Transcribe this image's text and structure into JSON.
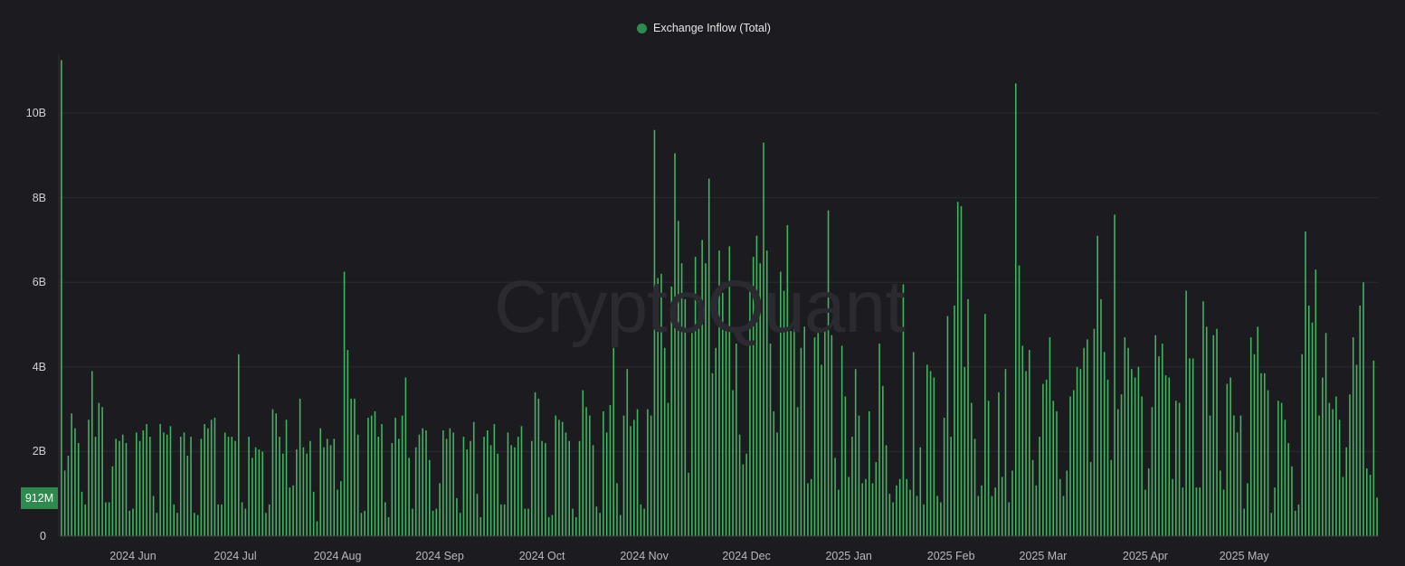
{
  "legend": {
    "label": "Exchange Inflow (Total)",
    "color": "#2e8b4e"
  },
  "watermark": "CryptoQuant",
  "last_value_label": "912M",
  "colors": {
    "bar": "#3fb55f",
    "badge": "#2e8b4e",
    "background": "#1c1c20",
    "grid": "#2a2a30"
  },
  "chart_data": {
    "type": "bar",
    "series": [
      {
        "name": "Exchange Inflow (Total)"
      }
    ],
    "y_ticks": [
      "0",
      "2B",
      "4B",
      "6B",
      "8B",
      "10B"
    ],
    "ylim": [
      0,
      11.5
    ],
    "y_unit": "B",
    "x_ticks": [
      {
        "label": "2024 Jun",
        "index": 21
      },
      {
        "label": "2024 Jul",
        "index": 51
      },
      {
        "label": "2024 Aug",
        "index": 81
      },
      {
        "label": "2024 Sep",
        "index": 111
      },
      {
        "label": "2024 Oct",
        "index": 141
      },
      {
        "label": "2024 Nov",
        "index": 171
      },
      {
        "label": "2024 Dec",
        "index": 201
      },
      {
        "label": "2025 Jan",
        "index": 231
      },
      {
        "label": "2025 Feb",
        "index": 261
      },
      {
        "label": "2025 Mar",
        "index": 288
      },
      {
        "label": "2025 Apr",
        "index": 318
      },
      {
        "label": "2025 May",
        "index": 347
      }
    ],
    "values": [
      11.25,
      1.55,
      1.9,
      2.9,
      2.55,
      2.2,
      1.05,
      0.75,
      2.75,
      3.9,
      2.35,
      3.15,
      3.05,
      0.8,
      0.8,
      1.65,
      2.3,
      2.25,
      2.4,
      2.2,
      0.6,
      0.65,
      2.45,
      2.25,
      2.5,
      2.65,
      2.35,
      0.95,
      0.55,
      2.65,
      2.45,
      2.4,
      2.6,
      0.75,
      0.55,
      2.35,
      2.45,
      1.9,
      2.35,
      0.55,
      0.5,
      2.3,
      2.65,
      2.55,
      2.75,
      2.8,
      0.75,
      0.75,
      2.45,
      2.35,
      2.35,
      2.25,
      4.3,
      0.8,
      0.65,
      2.35,
      1.85,
      2.1,
      2.05,
      2.0,
      0.55,
      0.75,
      3.0,
      2.9,
      2.35,
      1.95,
      2.75,
      1.15,
      1.2,
      2.05,
      3.25,
      2.1,
      1.95,
      2.25,
      1.05,
      0.35,
      2.55,
      2.1,
      2.3,
      2.15,
      2.3,
      1.1,
      1.3,
      6.25,
      4.4,
      3.25,
      3.25,
      2.4,
      0.55,
      0.6,
      2.8,
      2.85,
      2.95,
      2.35,
      2.65,
      0.8,
      0.45,
      2.2,
      2.8,
      2.3,
      2.85,
      3.75,
      1.85,
      0.65,
      2.1,
      2.4,
      2.55,
      2.5,
      1.8,
      0.6,
      0.65,
      1.25,
      2.5,
      2.3,
      2.55,
      2.45,
      0.9,
      0.55,
      2.35,
      2.05,
      2.25,
      2.7,
      1.0,
      0.45,
      2.35,
      2.5,
      2.15,
      2.65,
      1.95,
      0.75,
      0.75,
      2.45,
      2.15,
      2.1,
      2.35,
      2.6,
      0.65,
      0.65,
      2.25,
      3.4,
      3.25,
      2.25,
      2.2,
      0.45,
      0.5,
      2.85,
      2.75,
      2.7,
      2.45,
      2.25,
      0.65,
      0.45,
      2.25,
      3.45,
      3.05,
      2.85,
      2.15,
      0.7,
      0.55,
      2.95,
      2.45,
      3.1,
      4.45,
      1.25,
      0.5,
      2.85,
      3.95,
      2.6,
      2.75,
      3.0,
      0.75,
      0.65,
      3.0,
      2.85,
      9.6,
      6.1,
      6.2,
      4.45,
      3.15,
      5.9,
      9.05,
      7.45,
      6.45,
      5.6,
      1.5,
      4.8,
      6.6,
      5.15,
      7.0,
      6.45,
      8.45,
      3.85,
      4.45,
      6.75,
      5.75,
      5.0,
      6.85,
      3.45,
      4.55,
      2.4,
      1.7,
      1.95,
      5.9,
      6.6,
      7.1,
      6.45,
      9.3,
      6.75,
      4.55,
      2.95,
      2.45,
      6.25,
      5.8,
      7.35,
      4.85,
      4.9,
      3.05,
      4.45,
      4.95,
      1.25,
      1.35,
      4.7,
      4.8,
      4.05,
      4.85,
      7.7,
      4.75,
      1.85,
      1.1,
      4.5,
      3.3,
      1.4,
      2.35,
      3.95,
      2.85,
      1.25,
      1.35,
      2.95,
      1.25,
      1.75,
      4.55,
      3.55,
      2.15,
      1.0,
      0.8,
      1.2,
      1.35,
      5.95,
      1.35,
      1.1,
      4.35,
      0.95,
      2.1,
      0.75,
      4.05,
      3.9,
      3.75,
      0.95,
      0.8,
      2.8,
      5.2,
      2.35,
      5.45,
      7.9,
      7.8,
      4.0,
      5.6,
      3.15,
      2.3,
      0.95,
      1.2,
      5.25,
      3.2,
      0.95,
      1.15,
      3.4,
      1.4,
      3.95,
      0.8,
      1.55,
      10.7,
      6.4,
      4.5,
      3.9,
      4.4,
      1.8,
      1.2,
      2.35,
      3.6,
      3.7,
      4.7,
      3.2,
      2.95,
      1.35,
      0.95,
      1.55,
      3.3,
      3.45,
      4.0,
      3.95,
      4.45,
      4.65,
      1.75,
      4.9,
      7.1,
      5.6,
      4.35,
      3.7,
      1.8,
      7.6,
      3.0,
      3.35,
      4.7,
      4.45,
      3.95,
      3.75,
      4.0,
      3.3,
      1.1,
      1.6,
      3.05,
      4.75,
      4.25,
      4.55,
      3.8,
      3.75,
      1.35,
      3.2,
      3.15,
      1.15,
      5.8,
      4.2,
      4.2,
      1.15,
      1.15,
      5.55,
      4.95,
      2.85,
      4.75,
      4.9,
      1.55,
      1.1,
      3.6,
      3.75,
      2.85,
      2.45,
      2.85,
      0.65,
      1.25,
      4.7,
      4.3,
      4.95,
      3.85,
      3.85,
      3.45,
      0.55,
      1.15,
      3.2,
      3.15,
      2.75,
      2.2,
      1.65,
      0.6,
      0.75,
      4.3,
      7.2,
      5.45,
      5.05,
      6.3,
      2.85,
      3.75,
      4.8,
      3.15,
      3.0,
      3.3,
      2.75,
      1.4,
      2.1,
      3.35,
      4.7,
      4.05,
      5.45,
      6.0,
      1.6,
      1.45,
      4.15,
      0.912
    ]
  }
}
